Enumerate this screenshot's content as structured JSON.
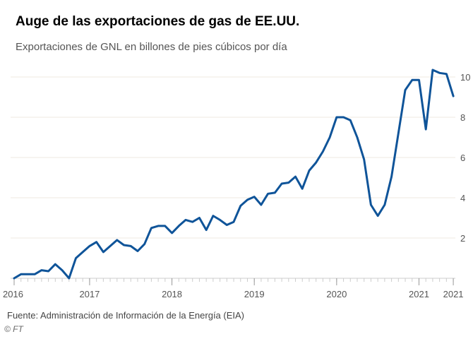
{
  "title": "Auge de las exportaciones de gas de EE.UU.",
  "subtitle": "Exportaciones de GNL en billones de pies cúbicos por día",
  "source": "Fuente: Administración de Información de la Energía (EIA)",
  "credit": "© FT",
  "colors": {
    "line": "#0f5499",
    "grid": "#efeae2",
    "axis": "#cccccc"
  },
  "chart_data": {
    "type": "line",
    "title": "Auge de las exportaciones de gas de EE.UU.",
    "subtitle": "Exportaciones de GNL en billones de pies cúbicos por día",
    "x_start": "2016-02",
    "x_frequency": "monthly",
    "x_end": "2021-06",
    "ylim": [
      0,
      10.5
    ],
    "y_ticks": [
      2,
      4,
      6,
      8,
      10
    ],
    "y_axis_position": "right",
    "grid": true,
    "x_tick_labels": [
      {
        "label": "2016",
        "month_index": 0
      },
      {
        "label": "2017",
        "month_index": 11
      },
      {
        "label": "2018",
        "month_index": 23
      },
      {
        "label": "2019",
        "month_index": 35
      },
      {
        "label": "2020",
        "month_index": 47
      },
      {
        "label": "2021",
        "month_index": 59
      },
      {
        "label": "2021",
        "month_index": 64
      }
    ],
    "series": [
      {
        "values": [
          0.0,
          0.2,
          0.2,
          0.2,
          0.4,
          0.35,
          0.7,
          0.4,
          0.0,
          1.0,
          1.3,
          1.6,
          1.8,
          1.3,
          1.6,
          1.9,
          1.65,
          1.6,
          1.35,
          1.7,
          2.5,
          2.6,
          2.6,
          2.25,
          2.6,
          2.9,
          2.8,
          3.0,
          2.4,
          3.1,
          2.9,
          2.65,
          2.8,
          3.6,
          3.9,
          4.05,
          3.65,
          4.2,
          4.25,
          4.7,
          4.75,
          5.05,
          4.45,
          5.35,
          5.75,
          6.3,
          7.0,
          8.0,
          8.0,
          7.85,
          7.0,
          5.9,
          3.65,
          3.1,
          3.65,
          5.05,
          7.2,
          9.35,
          9.85,
          9.85,
          7.4,
          10.35,
          10.2,
          10.15,
          9.05
        ]
      }
    ]
  }
}
